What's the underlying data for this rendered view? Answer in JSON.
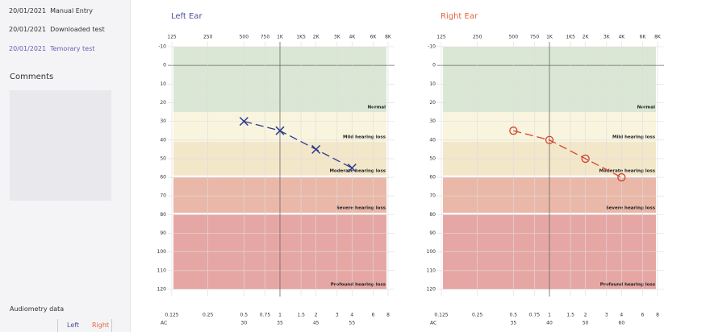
{
  "sidebar": {
    "tests": [
      {
        "date": "20/01/2021",
        "label": "Manual Entry"
      },
      {
        "date": "20/01/2021",
        "label": "Downloaded test"
      },
      {
        "date": "20/01/2021",
        "label": "Temorary test"
      }
    ],
    "comments_title": "Comments",
    "audiometry_title": "Audiometry data",
    "tabs": [
      "Left",
      "Right"
    ]
  },
  "chart_data": [
    {
      "type": "line",
      "title": "Left Ear",
      "title_color": "#4a4f9e",
      "xscale": "log",
      "y_inverted": true,
      "grid": true,
      "x": [
        500,
        1000,
        2000,
        4000
      ],
      "series": [
        {
          "color": "#2b3a8f",
          "marker": "x",
          "values": [
            30,
            35,
            45,
            55
          ]
        }
      ],
      "xlim": [
        125,
        8000
      ],
      "xticks": [
        125,
        250,
        500,
        750,
        {
          "value": 1000,
          "label": "1K"
        },
        {
          "value": 1500,
          "label": "1K5"
        },
        {
          "value": 2000,
          "label": "2K"
        },
        {
          "value": 3000,
          "label": "3K"
        },
        {
          "value": 4000,
          "label": "4K"
        },
        {
          "value": 6000,
          "label": "6K"
        },
        {
          "value": 8000,
          "label": "8K"
        }
      ],
      "ylim": [
        -10,
        120
      ],
      "yticks": [
        -10,
        0,
        10,
        20,
        30,
        40,
        50,
        60,
        70,
        80,
        90,
        100,
        110,
        120
      ],
      "bands": [
        {
          "label": "Normal",
          "from": -10,
          "to": 25,
          "color": "#dbe7d5"
        },
        {
          "label": "Mild hearing loss",
          "from": 25,
          "to": 41,
          "color": "#f8f4de"
        },
        {
          "label": "Moderate hearing loss",
          "from": 41,
          "to": 59,
          "color": "#f3e7c9"
        },
        {
          "label": "Severe hearing loss",
          "from": 60,
          "to": 79,
          "color": "#eab8a8"
        },
        {
          "label": "Profound hearing loss",
          "from": 80,
          "to": 120,
          "color": "#e6a7a4"
        }
      ],
      "table_frequencies": [
        0.125,
        0.25,
        0.5,
        0.75,
        1,
        1.5,
        2,
        3,
        4,
        6,
        8
      ],
      "table_row_label": "AC"
    },
    {
      "type": "line",
      "title": "Right Ear",
      "title_color": "#e4643f",
      "xscale": "log",
      "y_inverted": true,
      "grid": true,
      "x": [
        500,
        1000,
        2000,
        4000
      ],
      "series": [
        {
          "color": "#d0452f",
          "marker": "o",
          "values": [
            35,
            40,
            50,
            60
          ]
        }
      ],
      "xlim": [
        125,
        8000
      ],
      "xticks": [
        125,
        250,
        500,
        750,
        {
          "value": 1000,
          "label": "1K"
        },
        {
          "value": 1500,
          "label": "1K5"
        },
        {
          "value": 2000,
          "label": "2K"
        },
        {
          "value": 3000,
          "label": "3K"
        },
        {
          "value": 4000,
          "label": "4K"
        },
        {
          "value": 6000,
          "label": "6K"
        },
        {
          "value": 8000,
          "label": "8K"
        }
      ],
      "ylim": [
        -10,
        120
      ],
      "yticks": [
        -10,
        0,
        10,
        20,
        30,
        40,
        50,
        60,
        70,
        80,
        90,
        100,
        110,
        120
      ],
      "bands": [
        {
          "label": "Normal",
          "from": -10,
          "to": 25,
          "color": "#dbe7d5"
        },
        {
          "label": "Mild hearing loss",
          "from": 25,
          "to": 41,
          "color": "#f8f4de"
        },
        {
          "label": "Moderate hearing loss",
          "from": 41,
          "to": 59,
          "color": "#f3e7c9"
        },
        {
          "label": "Severe hearing loss",
          "from": 60,
          "to": 79,
          "color": "#eab8a8"
        },
        {
          "label": "Profound hearing loss",
          "from": 80,
          "to": 120,
          "color": "#e6a7a4"
        }
      ],
      "table_frequencies": [
        0.125,
        0.25,
        0.5,
        0.75,
        1,
        1.5,
        2,
        3,
        4,
        6,
        8
      ],
      "table_row_label": "AC"
    }
  ]
}
